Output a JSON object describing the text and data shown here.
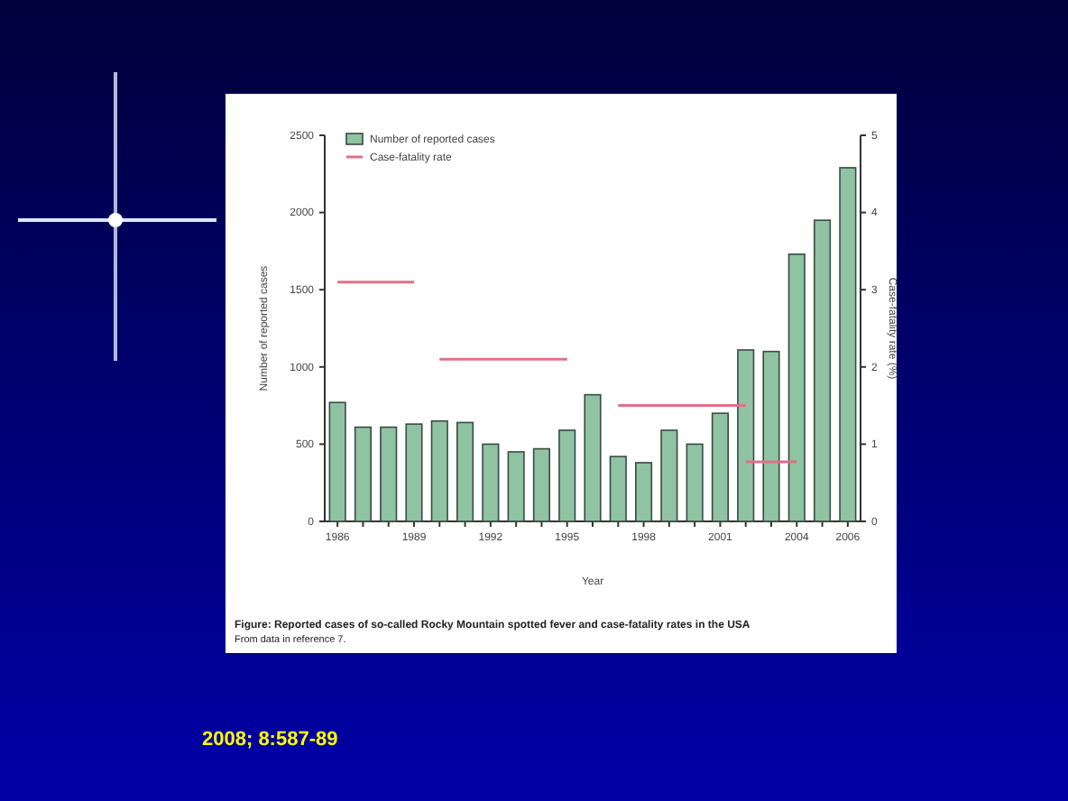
{
  "chart_data": {
    "type": "bar",
    "xlabel": "Year",
    "ylabel": "Number of reported cases",
    "y2label": "Case-fatality rate (%)",
    "x": [
      1986,
      1987,
      1988,
      1989,
      1990,
      1991,
      1992,
      1993,
      1994,
      1995,
      1996,
      1997,
      1998,
      1999,
      2000,
      2001,
      2002,
      2003,
      2004,
      2005,
      2006
    ],
    "xlim": [
      1985.5,
      2006.5
    ],
    "xticks": [
      1986,
      {
        "value": 1987,
        "label": null
      },
      {
        "value": 1988,
        "label": null
      },
      1989,
      {
        "value": 1990,
        "label": null
      },
      {
        "value": 1991,
        "label": null
      },
      1992,
      {
        "value": 1993,
        "label": null
      },
      {
        "value": 1994,
        "label": null
      },
      1995,
      {
        "value": 1996,
        "label": null
      },
      {
        "value": 1997,
        "label": null
      },
      1998,
      {
        "value": 1999,
        "label": null
      },
      {
        "value": 2000,
        "label": null
      },
      2001,
      {
        "value": 2002,
        "label": null
      },
      {
        "value": 2003,
        "label": null
      },
      2004,
      {
        "value": 2005,
        "label": null
      },
      2006
    ],
    "ylim": [
      0,
      2500
    ],
    "yticks": [
      0,
      500,
      1000,
      1500,
      2000,
      2500
    ],
    "y2lim": [
      0,
      5
    ],
    "y2ticks": [
      0,
      1,
      2,
      3,
      4,
      5
    ],
    "series": [
      {
        "name": "Number of reported cases",
        "color": "#8fc3a3",
        "values": [
          770,
          610,
          610,
          630,
          650,
          640,
          500,
          450,
          470,
          590,
          820,
          420,
          380,
          590,
          500,
          700,
          1110,
          1100,
          1730,
          1950,
          2290
        ]
      },
      {
        "name": "Case-fatality rate",
        "type": "line",
        "axis": "y2",
        "color": "#e0708a",
        "x": [
          1986,
          1989
        ],
        "values": [
          3.1,
          3.1
        ]
      },
      {
        "type": "line",
        "axis": "y2",
        "color": "#e0708a",
        "x": [
          1990,
          1995
        ],
        "values": [
          2.1,
          2.1
        ]
      },
      {
        "type": "line",
        "axis": "y2",
        "color": "#e0708a",
        "x": [
          1997,
          2002
        ],
        "values": [
          1.5,
          1.5
        ]
      },
      {
        "type": "line",
        "axis": "y2",
        "color": "#e0708a",
        "x": [
          2002,
          2004
        ],
        "values": [
          0.77,
          0.77
        ]
      }
    ],
    "legend": "top left",
    "grid": false,
    "marker": "none",
    "annotations": [
      "Figure: Reported cases of so-called Rocky Mountain spotted fever and case-fatality rates in the USA",
      "From data in reference 7.",
      "2008; 8:587-89"
    ]
  }
}
